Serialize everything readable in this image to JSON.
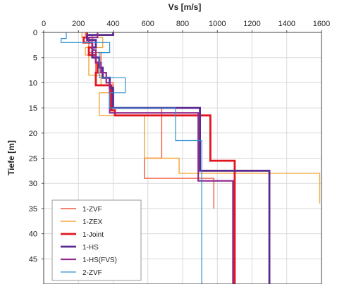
{
  "chart_data": {
    "type": "line",
    "title": "",
    "xlabel": "Vs [m/s]",
    "ylabel": "Tiefe [m]",
    "xlim": [
      0,
      1600
    ],
    "ylim": [
      0,
      50
    ],
    "y_inverted": true,
    "x_axis_position": "top",
    "x_ticks": [
      "0",
      "200",
      "400",
      "600",
      "800",
      "1000",
      "1200",
      "1400",
      "1600"
    ],
    "y_ticks": [
      "0",
      "5",
      "10",
      "15",
      "20",
      "25",
      "30",
      "35",
      "40",
      "45"
    ],
    "grid": true,
    "legend_position": "bottom-left",
    "series": [
      {
        "name": "1-ZVF",
        "color": "#ef5a3c",
        "points": [
          [
            240,
            0
          ],
          [
            240,
            0.6
          ],
          [
            280,
            0.6
          ],
          [
            280,
            2
          ],
          [
            260,
            2
          ],
          [
            260,
            4
          ],
          [
            330,
            4
          ],
          [
            330,
            6
          ],
          [
            300,
            6
          ],
          [
            300,
            8
          ],
          [
            360,
            8
          ],
          [
            360,
            10
          ],
          [
            400,
            10
          ],
          [
            400,
            12
          ],
          [
            400,
            12
          ],
          [
            400,
            15
          ],
          [
            680,
            15
          ],
          [
            680,
            25
          ],
          [
            580,
            25
          ],
          [
            580,
            29
          ],
          [
            980,
            29
          ],
          [
            980,
            35
          ]
        ]
      },
      {
        "name": "1-ZEX",
        "color": "#f5a63a",
        "points": [
          [
            220,
            0
          ],
          [
            220,
            1
          ],
          [
            340,
            1
          ],
          [
            340,
            3
          ],
          [
            240,
            3
          ],
          [
            240,
            4.5
          ],
          [
            260,
            4.5
          ],
          [
            260,
            8.5
          ],
          [
            330,
            8.5
          ],
          [
            330,
            10.5
          ],
          [
            380,
            10.5
          ],
          [
            380,
            12
          ],
          [
            320,
            12
          ],
          [
            320,
            16.5
          ],
          [
            580,
            16.5
          ],
          [
            580,
            25
          ],
          [
            780,
            25
          ],
          [
            780,
            28
          ],
          [
            1590,
            28
          ],
          [
            1590,
            34
          ]
        ]
      },
      {
        "name": "1-Joint",
        "color": "#e3151e",
        "points": [
          [
            250,
            0
          ],
          [
            250,
            1
          ],
          [
            230,
            1
          ],
          [
            230,
            2
          ],
          [
            280,
            2
          ],
          [
            280,
            3
          ],
          [
            260,
            3
          ],
          [
            260,
            4.5
          ],
          [
            300,
            4.5
          ],
          [
            300,
            6
          ],
          [
            310,
            6
          ],
          [
            310,
            8
          ],
          [
            300,
            8
          ],
          [
            300,
            10.5
          ],
          [
            390,
            10.5
          ],
          [
            390,
            15.5
          ],
          [
            410,
            15.5
          ],
          [
            410,
            16.5
          ],
          [
            960,
            16.5
          ],
          [
            960,
            25.5
          ],
          [
            1100,
            25.5
          ],
          [
            1100,
            50
          ]
        ]
      },
      {
        "name": "1-HS",
        "color": "#5b2a91",
        "points": [
          [
            400,
            0
          ],
          [
            400,
            0.5
          ],
          [
            250,
            0.5
          ],
          [
            250,
            1.5
          ],
          [
            300,
            1.5
          ],
          [
            300,
            3
          ],
          [
            280,
            3
          ],
          [
            280,
            5
          ],
          [
            320,
            5
          ],
          [
            320,
            7
          ],
          [
            340,
            7
          ],
          [
            340,
            9
          ],
          [
            380,
            9
          ],
          [
            380,
            11
          ],
          [
            400,
            11
          ],
          [
            400,
            15
          ],
          [
            900,
            15
          ],
          [
            900,
            27.5
          ],
          [
            1300,
            27.5
          ],
          [
            1300,
            50
          ]
        ]
      },
      {
        "name": "1-HS(FVS)",
        "color": "#8e2b8f",
        "points": [
          [
            310,
            0
          ],
          [
            310,
            1
          ],
          [
            260,
            1
          ],
          [
            260,
            2
          ],
          [
            280,
            2
          ],
          [
            280,
            3.5
          ],
          [
            300,
            3.5
          ],
          [
            300,
            6
          ],
          [
            330,
            6
          ],
          [
            330,
            8
          ],
          [
            360,
            8
          ],
          [
            360,
            10
          ],
          [
            380,
            10
          ],
          [
            380,
            16
          ],
          [
            890,
            16
          ],
          [
            890,
            29.5
          ],
          [
            1090,
            29.5
          ],
          [
            1090,
            50
          ]
        ]
      },
      {
        "name": "2-ZVF",
        "color": "#2e8fcf",
        "points": [
          [
            130,
            0
          ],
          [
            130,
            1.2
          ],
          [
            100,
            1.2
          ],
          [
            100,
            2
          ],
          [
            380,
            2
          ],
          [
            380,
            4
          ],
          [
            320,
            4
          ],
          [
            320,
            9
          ],
          [
            470,
            9
          ],
          [
            470,
            12
          ],
          [
            380,
            12
          ],
          [
            380,
            15
          ],
          [
            760,
            15
          ],
          [
            760,
            21.5
          ],
          [
            910,
            21.5
          ],
          [
            910,
            50
          ]
        ]
      }
    ]
  }
}
